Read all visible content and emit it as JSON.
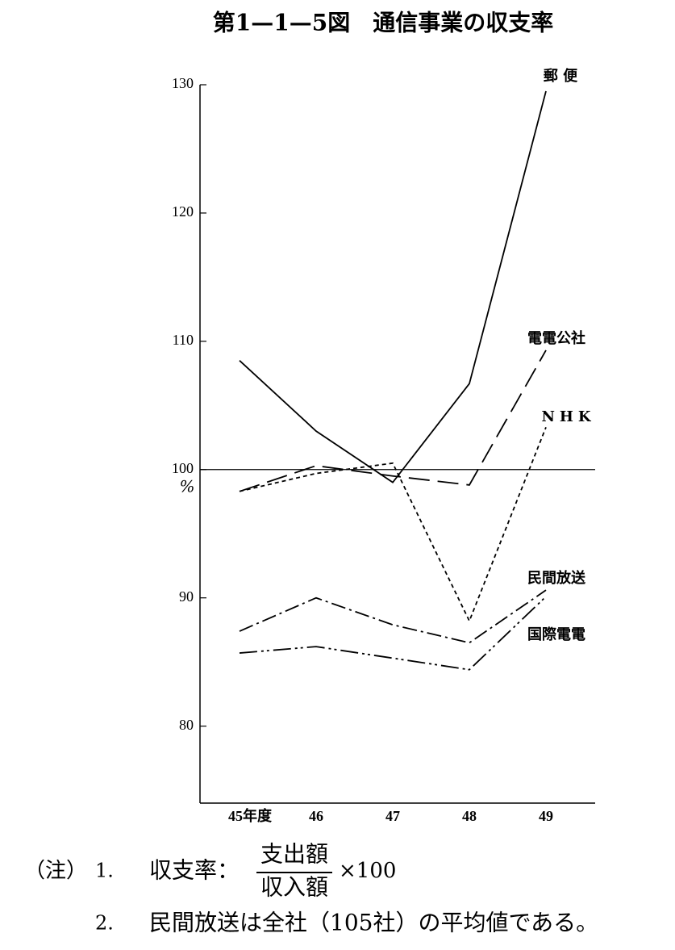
{
  "chart_data": {
    "type": "line",
    "title": "第1—1—5図　通信事業の収支率",
    "categories": [
      "45年度",
      "46",
      "47",
      "48",
      "49"
    ],
    "series": [
      {
        "name": "郵 便",
        "color": "#000000",
        "values": [
          108.5,
          103,
          99,
          106.7,
          129.5
        ]
      },
      {
        "name": "電電公社",
        "color": "#000000",
        "values": [
          98.3,
          100.3,
          99.5,
          98.8,
          109.3
        ]
      },
      {
        "name": "NHK",
        "color": "#000000",
        "values": [
          98.3,
          99.7,
          100.5,
          88.2,
          103.3
        ]
      },
      {
        "name": "民間放送",
        "color": "#000000",
        "values": [
          87.4,
          90,
          87.9,
          86.5,
          90.6
        ]
      },
      {
        "name": "国際電電",
        "color": "#000000",
        "values": [
          85.7,
          86.2,
          85.3,
          84.4,
          90.1
        ]
      }
    ],
    "ylim": [
      74,
      130
    ],
    "yticks": [
      80,
      90,
      100,
      110,
      120,
      130
    ],
    "y_unit": "%",
    "hline": 100,
    "notes": {
      "prefix": "（注）",
      "items": [
        {
          "number": "1.",
          "text": "収支率：",
          "numerator": "支出額",
          "denominator": "収入額",
          "suffix": "×100"
        },
        {
          "number": "2.",
          "text": "民間放送は全社（105社）の平均値である。"
        }
      ]
    }
  }
}
